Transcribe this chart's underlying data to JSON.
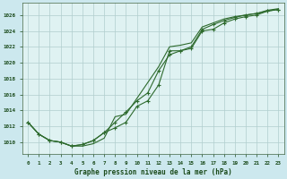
{
  "title": "Graphe pression niveau de la mer (hPa)",
  "background_color": "#cce8ee",
  "plot_bg_color": "#dff2f2",
  "grid_color": "#b0cece",
  "line_color": "#2d6a2d",
  "xlim": [
    -0.5,
    23.5
  ],
  "ylim": [
    1008.5,
    1027.5
  ],
  "yticks": [
    1010,
    1012,
    1014,
    1016,
    1018,
    1020,
    1022,
    1024,
    1026
  ],
  "xticks": [
    0,
    1,
    2,
    3,
    4,
    5,
    6,
    7,
    8,
    9,
    10,
    11,
    12,
    13,
    14,
    15,
    16,
    17,
    18,
    19,
    20,
    21,
    22,
    23
  ],
  "series1_x": [
    0,
    1,
    2,
    3,
    4,
    5,
    6,
    7,
    8,
    9,
    10,
    11,
    12,
    13,
    14,
    15,
    16,
    17,
    18,
    19,
    20,
    21,
    22,
    23
  ],
  "series1_y": [
    1012.5,
    1011.0,
    1010.2,
    1010.0,
    1009.5,
    1009.7,
    1010.2,
    1011.2,
    1011.8,
    1012.5,
    1014.5,
    1015.2,
    1017.2,
    1021.5,
    1021.5,
    1021.8,
    1024.0,
    1024.2,
    1025.0,
    1025.5,
    1025.8,
    1026.0,
    1026.5,
    1026.7
  ],
  "series2_x": [
    0,
    1,
    2,
    3,
    4,
    5,
    6,
    7,
    8,
    9,
    10,
    11,
    12,
    13,
    14,
    15,
    16,
    17,
    18,
    19,
    20,
    21,
    22,
    23
  ],
  "series2_y": [
    1012.5,
    1011.0,
    1010.2,
    1010.0,
    1009.5,
    1009.7,
    1010.2,
    1011.2,
    1012.5,
    1013.8,
    1015.2,
    1016.2,
    1019.0,
    1021.0,
    1021.5,
    1022.0,
    1024.2,
    1024.8,
    1025.3,
    1025.7,
    1026.0,
    1026.2,
    1026.5,
    1026.7
  ],
  "series3_x": [
    0,
    1,
    2,
    3,
    4,
    5,
    6,
    7,
    8,
    9,
    10,
    11,
    12,
    13,
    14,
    15,
    16,
    17,
    18,
    19,
    20,
    21,
    22,
    23
  ],
  "series3_y": [
    1012.5,
    1011.0,
    1010.2,
    1010.0,
    1009.5,
    1009.5,
    1009.8,
    1010.5,
    1013.2,
    1013.5,
    1015.5,
    1017.5,
    1019.5,
    1022.0,
    1022.2,
    1022.5,
    1024.5,
    1025.0,
    1025.5,
    1025.8,
    1026.0,
    1026.2,
    1026.6,
    1026.8
  ]
}
